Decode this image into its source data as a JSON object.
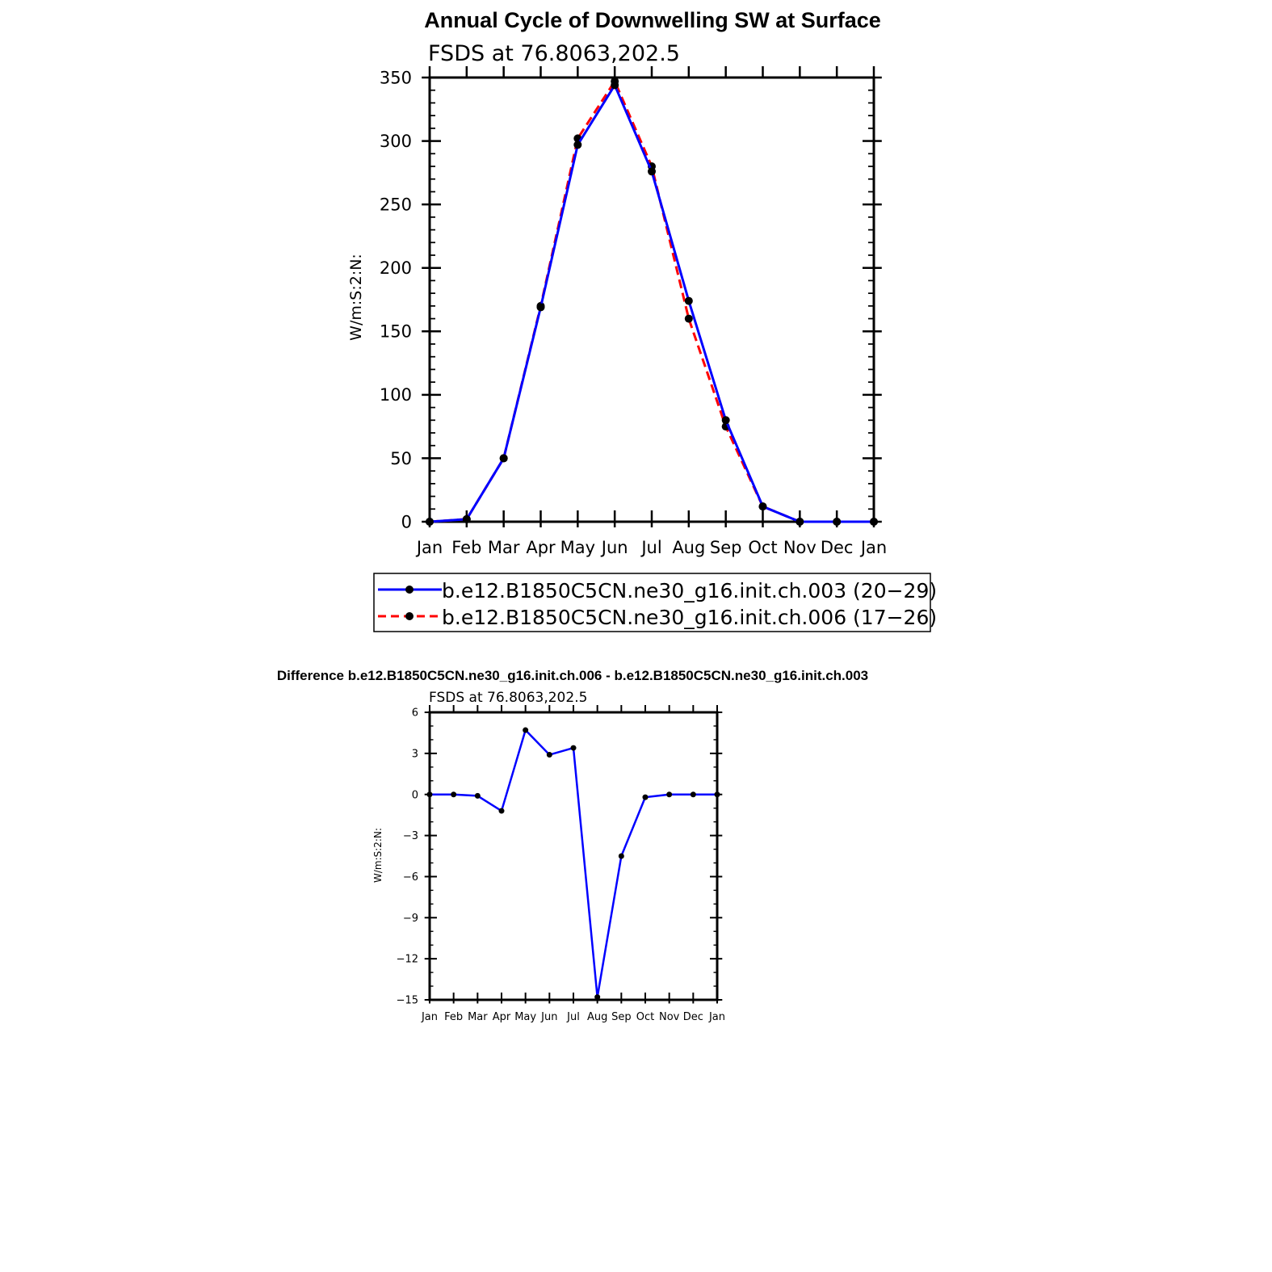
{
  "chart_data": [
    {
      "type": "line",
      "title": "Annual Cycle of Downwelling SW at Surface",
      "subtitle": "FSDS at 76.8063,202.5",
      "xlabel": "",
      "ylabel": "W/m:S:2:N:",
      "categories": [
        "Jan",
        "Feb",
        "Mar",
        "Apr",
        "May",
        "Jun",
        "Jul",
        "Aug",
        "Sep",
        "Oct",
        "Nov",
        "Dec",
        "Jan"
      ],
      "yticks": [
        "0",
        "50",
        "100",
        "150",
        "200",
        "250",
        "300",
        "350"
      ],
      "ylim": [
        0,
        350
      ],
      "grid": false,
      "legend_position": "bottom",
      "series": [
        {
          "name": "b.e12.B1850C5CN.ne30_g16.init.ch.003 (20−29)",
          "color": "#0000ff",
          "style": "solid",
          "values": [
            0,
            2,
            50,
            169,
            297,
            344,
            276,
            174,
            80,
            12,
            0,
            0,
            0
          ]
        },
        {
          "name": "b.e12.B1850C5CN.ne30_g16.init.ch.006 (17−26)",
          "color": "#ff0000",
          "style": "dashed",
          "values": [
            0,
            2,
            50,
            170,
            302,
            347,
            280,
            160,
            75,
            12,
            0,
            0,
            0
          ]
        }
      ]
    },
    {
      "type": "line",
      "title": "Difference b.e12.B1850C5CN.ne30_g16.init.ch.006 - b.e12.B1850C5CN.ne30_g16.init.ch.003",
      "subtitle": "FSDS at 76.8063,202.5",
      "xlabel": "",
      "ylabel": "W/m:S:2:N:",
      "categories": [
        "Jan",
        "Feb",
        "Mar",
        "Apr",
        "May",
        "Jun",
        "Jul",
        "Aug",
        "Sep",
        "Oct",
        "Nov",
        "Dec",
        "Jan"
      ],
      "yticks": [
        "6",
        "3",
        "0",
        "−3",
        "−6",
        "−9",
        "−12",
        "−15"
      ],
      "ylim": [
        -15,
        6
      ],
      "grid": false,
      "series": [
        {
          "color": "#0000ff",
          "style": "solid",
          "values": [
            0,
            0,
            -0.1,
            -1.2,
            4.7,
            2.9,
            3.4,
            -14.8,
            -4.5,
            -0.2,
            0,
            0,
            0
          ]
        }
      ]
    }
  ]
}
